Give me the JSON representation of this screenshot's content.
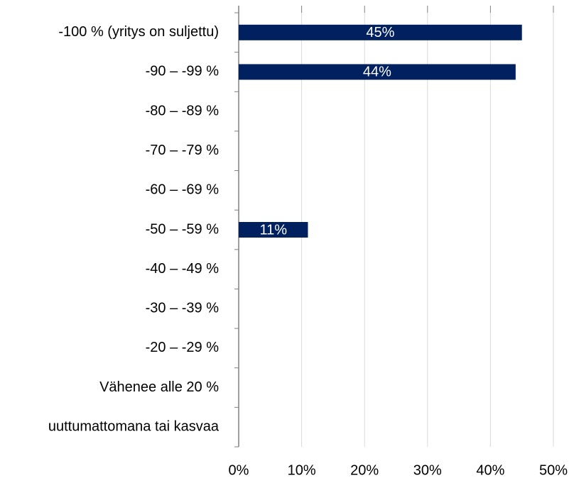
{
  "chart_data": {
    "type": "bar",
    "orientation": "horizontal",
    "categories": [
      "-100 % (yritys on suljettu)",
      "-90 – -99 %",
      "-80 – -89 %",
      "-70 – -79 %",
      "-60 – -69 %",
      "-50 – -59 %",
      "-40 – -49 %",
      "-30 – -39 %",
      "-20 – -29 %",
      "Vähenee alle 20 %",
      "uuttumattomana tai kasvaa"
    ],
    "values": [
      45,
      44,
      0,
      0,
      0,
      11,
      0,
      0,
      0,
      0,
      0
    ],
    "value_labels": [
      "45%",
      "44%",
      null,
      null,
      null,
      "11%",
      null,
      null,
      null,
      null,
      null
    ],
    "color": "#002060",
    "xlim": [
      0,
      50
    ],
    "xticks": [
      {
        "value": 0,
        "label": "0%"
      },
      {
        "value": 10,
        "label": "10%"
      },
      {
        "value": 20,
        "label": "20%"
      },
      {
        "value": 30,
        "label": "30%"
      },
      {
        "value": 40,
        "label": "40%"
      },
      {
        "value": 50,
        "label": "50%"
      }
    ],
    "grid": true
  }
}
